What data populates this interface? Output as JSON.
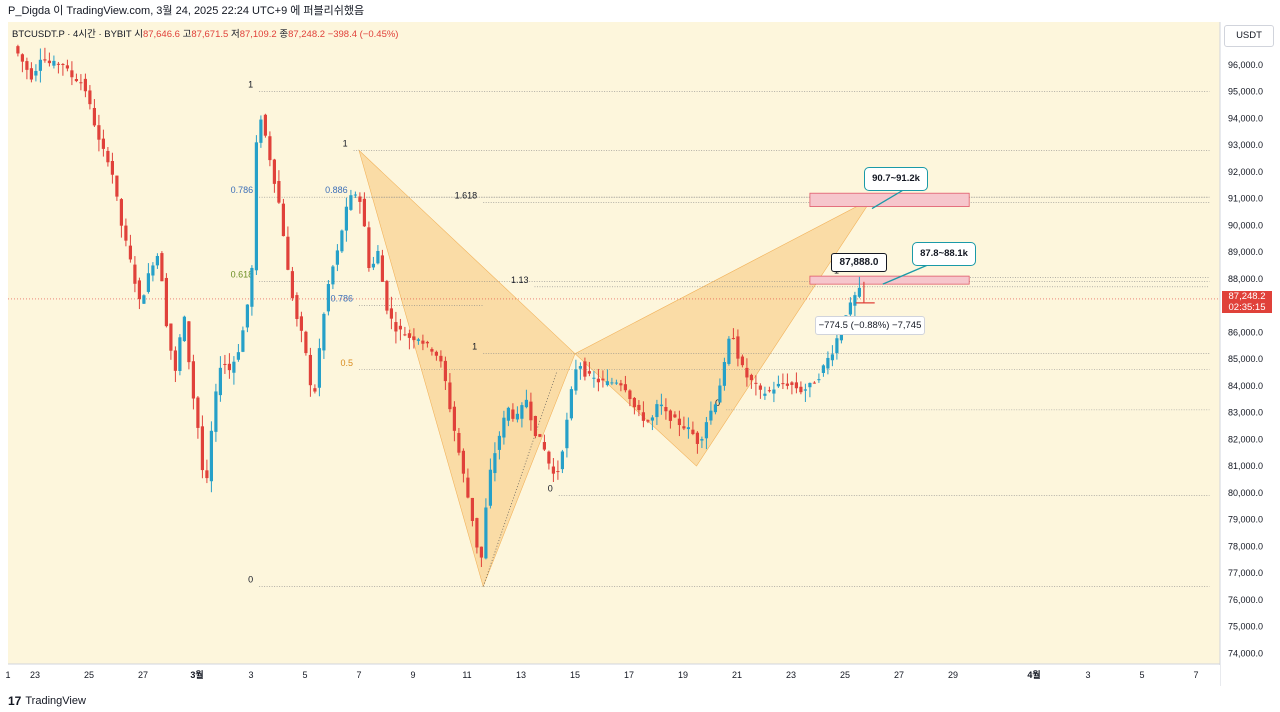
{
  "header": {
    "publisher_line": "P_Digda 이 TradingView.com, 3월 24, 2025 22:24 UTC+9 에 퍼블리쉬했음"
  },
  "ohlc": {
    "symbol": "BTCUSDT.P · 4시간 · BYBIT",
    "open_label": "시",
    "open": "87,646.6",
    "high_label": "고",
    "high": "87,671.5",
    "low_label": "저",
    "low": "87,109.2",
    "close_label": "종",
    "close": "87,248.2",
    "change": "−398.4 (−0.45%)"
  },
  "currency": "USDT",
  "last_price": {
    "value": "87,248.2",
    "timer": "02:35:15",
    "color": "#e0413a"
  },
  "chart_data": {
    "type": "candlestick",
    "title": "BTCUSDT.P · 4시간 · BYBIT",
    "ylim": [
      73600,
      97600
    ],
    "y_ticks": [
      74000,
      75000,
      76000,
      77000,
      78000,
      79000,
      80000,
      81000,
      82000,
      83000,
      84000,
      85000,
      86000,
      87000,
      88000,
      89000,
      90000,
      91000,
      92000,
      93000,
      94000,
      95000,
      96000
    ],
    "y_tick_labels": [
      "74,000.0",
      "75,000.0",
      "76,000.0",
      "77,000.0",
      "78,000.0",
      "79,000.0",
      "80,000.0",
      "81,000.0",
      "82,000.0",
      "83,000.0",
      "84,000.0",
      "85,000.0",
      "86,000.0",
      "87,000.0",
      "88,000.0",
      "89,000.0",
      "90,000.0",
      "91,000.0",
      "92,000.0",
      "93,000.0",
      "94,000.0",
      "95,000.0",
      "96,000.0"
    ],
    "x_ticks": [
      {
        "label": "1",
        "day": 0
      },
      {
        "label": "23",
        "day": 1
      },
      {
        "label": "25",
        "day": 3
      },
      {
        "label": "27",
        "day": 5
      },
      {
        "label": "3월",
        "day": 7,
        "bold": true
      },
      {
        "label": "3",
        "day": 9
      },
      {
        "label": "5",
        "day": 11
      },
      {
        "label": "7",
        "day": 13
      },
      {
        "label": "9",
        "day": 15
      },
      {
        "label": "11",
        "day": 17
      },
      {
        "label": "13",
        "day": 19
      },
      {
        "label": "15",
        "day": 21
      },
      {
        "label": "17",
        "day": 23
      },
      {
        "label": "19",
        "day": 25
      },
      {
        "label": "21",
        "day": 27
      },
      {
        "label": "23",
        "day": 29
      },
      {
        "label": "25",
        "day": 31
      },
      {
        "label": "27",
        "day": 33
      },
      {
        "label": "29",
        "day": 35
      },
      {
        "label": "4월",
        "day": 38,
        "bold": true
      },
      {
        "label": "3",
        "day": 40
      },
      {
        "label": "5",
        "day": 42
      },
      {
        "label": "7",
        "day": 44
      }
    ],
    "price_path": [
      [
        0.2,
        96700
      ],
      [
        0.6,
        96000
      ],
      [
        0.9,
        95500
      ],
      [
        1.2,
        96300
      ],
      [
        1.6,
        96000
      ],
      [
        2.0,
        96100
      ],
      [
        2.3,
        95600
      ],
      [
        2.8,
        95300
      ],
      [
        3.1,
        94200
      ],
      [
        3.4,
        93000
      ],
      [
        3.8,
        92300
      ],
      [
        4.2,
        90000
      ],
      [
        4.5,
        88800
      ],
      [
        4.9,
        87000
      ],
      [
        5.3,
        88500
      ],
      [
        5.6,
        89000
      ],
      [
        5.9,
        86000
      ],
      [
        6.2,
        84500
      ],
      [
        6.5,
        86800
      ],
      [
        6.8,
        84000
      ],
      [
        7.1,
        82000
      ],
      [
        7.3,
        79700
      ],
      [
        7.6,
        83000
      ],
      [
        7.9,
        85000
      ],
      [
        8.2,
        84600
      ],
      [
        8.5,
        85200
      ],
      [
        8.8,
        86500
      ],
      [
        9.05,
        88500
      ],
      [
        9.25,
        94500
      ],
      [
        9.5,
        93500
      ],
      [
        9.8,
        92000
      ],
      [
        10.1,
        90500
      ],
      [
        10.4,
        88000
      ],
      [
        10.7,
        86500
      ],
      [
        11.0,
        85500
      ],
      [
        11.3,
        83200
      ],
      [
        11.6,
        86000
      ],
      [
        11.9,
        88000
      ],
      [
        12.2,
        89000
      ],
      [
        12.5,
        90500
      ],
      [
        12.8,
        91300
      ],
      [
        13.1,
        90800
      ],
      [
        13.4,
        88200
      ],
      [
        13.7,
        89000
      ],
      [
        14.0,
        87000
      ],
      [
        14.3,
        86200
      ],
      [
        14.6,
        86000
      ],
      [
        14.9,
        85800
      ],
      [
        15.2,
        85800
      ],
      [
        15.5,
        85500
      ],
      [
        15.8,
        85300
      ],
      [
        16.1,
        84700
      ],
      [
        16.4,
        83000
      ],
      [
        16.8,
        81000
      ],
      [
        17.2,
        79000
      ],
      [
        17.5,
        77200
      ],
      [
        17.8,
        80500
      ],
      [
        18.1,
        81800
      ],
      [
        18.5,
        83200
      ],
      [
        18.8,
        82700
      ],
      [
        19.2,
        83500
      ],
      [
        19.5,
        82300
      ],
      [
        19.8,
        81800
      ],
      [
        20.1,
        80900
      ],
      [
        20.3,
        80500
      ],
      [
        20.6,
        82000
      ],
      [
        20.9,
        84000
      ],
      [
        21.1,
        85000
      ],
      [
        21.4,
        84400
      ],
      [
        21.8,
        84200
      ],
      [
        22.2,
        84100
      ],
      [
        22.6,
        84200
      ],
      [
        22.9,
        83900
      ],
      [
        23.2,
        83200
      ],
      [
        23.5,
        82800
      ],
      [
        23.8,
        82600
      ],
      [
        24.1,
        83400
      ],
      [
        24.4,
        82900
      ],
      [
        24.7,
        82700
      ],
      [
        25.0,
        82500
      ],
      [
        25.3,
        82300
      ],
      [
        25.6,
        81800
      ],
      [
        25.9,
        82800
      ],
      [
        26.2,
        83400
      ],
      [
        26.5,
        84600
      ],
      [
        26.8,
        86200
      ],
      [
        27.0,
        85200
      ],
      [
        27.3,
        84400
      ],
      [
        27.6,
        84100
      ],
      [
        27.9,
        83700
      ],
      [
        28.2,
        83800
      ],
      [
        28.5,
        84000
      ],
      [
        28.8,
        84100
      ],
      [
        29.1,
        84000
      ],
      [
        29.4,
        83800
      ],
      [
        29.7,
        84000
      ],
      [
        30.0,
        84300
      ],
      [
        30.3,
        84900
      ],
      [
        30.6,
        85400
      ],
      [
        30.9,
        86500
      ],
      [
        31.2,
        87000
      ],
      [
        31.5,
        87600
      ],
      [
        31.7,
        87248
      ]
    ],
    "last_price": 87248.2,
    "fib_levels": [
      {
        "label": "1",
        "value": 95000,
        "x0": 9.3,
        "x1": 44.5
      },
      {
        "label": "1",
        "value": 92800,
        "x0": 12.8,
        "x1": 44.5
      },
      {
        "label": "0.786",
        "value": 91050,
        "x0": 9.3,
        "x1": 44.5
      },
      {
        "label": "0.886",
        "value": 91050,
        "x0": 12.8,
        "x1": 44.5
      },
      {
        "label": "1.618",
        "value": 90850,
        "x0": 17.6,
        "x1": 44.5
      },
      {
        "label": "1.13",
        "value": 87700,
        "x0": 19.5,
        "x1": 44.5
      },
      {
        "label": "0.618",
        "value": 87900,
        "x0": 9.3,
        "x1": 44.5
      },
      {
        "label": "0.786",
        "value": 87000,
        "x0": 13.0,
        "x1": 17.6
      },
      {
        "label": "1",
        "value": 85200,
        "x0": 17.6,
        "x1": 44.5
      },
      {
        "label": "0.5",
        "value": 84600,
        "x0": 13.0,
        "x1": 44.5
      },
      {
        "label": "0",
        "value": 83100,
        "x0": 26.6,
        "x1": 44.5
      },
      {
        "label": "0",
        "value": 79900,
        "x0": 20.4,
        "x1": 44.5
      },
      {
        "label": "0",
        "value": 76500,
        "x0": 9.3,
        "x1": 44.5
      },
      {
        "label": "1",
        "value": 88050,
        "x0": 31.0,
        "x1": 44.5
      }
    ],
    "harmonic_pattern": {
      "X": [
        13.0,
        92800
      ],
      "A": [
        17.6,
        76500
      ],
      "B": [
        21.0,
        85200
      ],
      "C": [
        25.5,
        81000
      ],
      "D": [
        32.0,
        91000
      ]
    },
    "zones": [
      {
        "label": "90.7~91.2k",
        "low": 90700,
        "high": 91200,
        "x0": 29.7,
        "x1": 35.6
      },
      {
        "label": "87.8~88.1k",
        "low": 87800,
        "high": 88100,
        "x0": 29.7,
        "x1": 35.6
      }
    ],
    "marker": {
      "label": "87,888.0",
      "value": 87888
    },
    "measure": {
      "label": "−774.5 (−0.88%) −7,745"
    }
  },
  "footer": {
    "brand": "TradingView",
    "logo_mark": "17"
  }
}
